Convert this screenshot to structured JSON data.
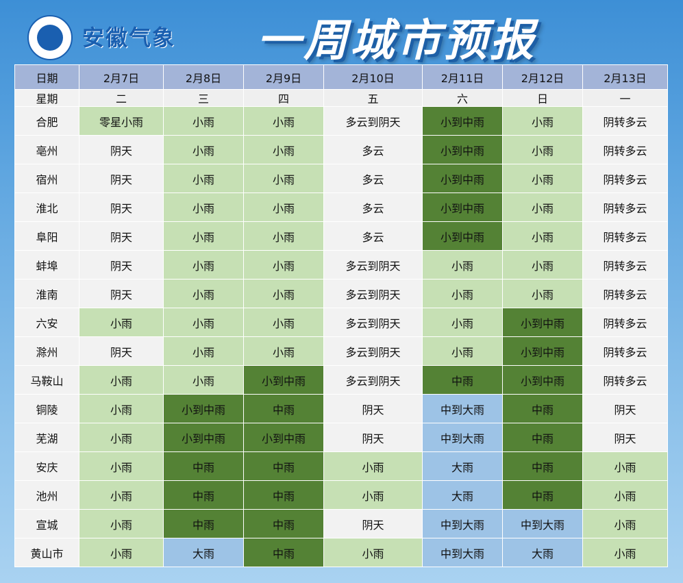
{
  "header": {
    "logo_label": "安徽气象",
    "title": "一周城市预报"
  },
  "colors": {
    "gray": "#f2f2f2",
    "light_green": "#c6e0b4",
    "dark_green": "#548235",
    "blue": "#9dc3e6",
    "date_header": "#a3b4d8"
  },
  "table": {
    "date_label": "日期",
    "week_label": "星期",
    "dates": [
      "2月7日",
      "2月8日",
      "2月9日",
      "2月10日",
      "2月11日",
      "2月12日",
      "2月13日"
    ],
    "weekdays": [
      "二",
      "三",
      "四",
      "五",
      "六",
      "日",
      "一"
    ],
    "rows": [
      {
        "city": "合肥",
        "cells": [
          "零星小雨",
          "小雨",
          "小雨",
          "多云到阴天",
          "小到中雨",
          "小雨",
          "阴转多云"
        ]
      },
      {
        "city": "亳州",
        "cells": [
          "阴天",
          "小雨",
          "小雨",
          "多云",
          "小到中雨",
          "小雨",
          "阴转多云"
        ]
      },
      {
        "city": "宿州",
        "cells": [
          "阴天",
          "小雨",
          "小雨",
          "多云",
          "小到中雨",
          "小雨",
          "阴转多云"
        ]
      },
      {
        "city": "淮北",
        "cells": [
          "阴天",
          "小雨",
          "小雨",
          "多云",
          "小到中雨",
          "小雨",
          "阴转多云"
        ]
      },
      {
        "city": "阜阳",
        "cells": [
          "阴天",
          "小雨",
          "小雨",
          "多云",
          "小到中雨",
          "小雨",
          "阴转多云"
        ]
      },
      {
        "city": "蚌埠",
        "cells": [
          "阴天",
          "小雨",
          "小雨",
          "多云到阴天",
          "小雨",
          "小雨",
          "阴转多云"
        ]
      },
      {
        "city": "淮南",
        "cells": [
          "阴天",
          "小雨",
          "小雨",
          "多云到阴天",
          "小雨",
          "小雨",
          "阴转多云"
        ]
      },
      {
        "city": "六安",
        "cells": [
          "小雨",
          "小雨",
          "小雨",
          "多云到阴天",
          "小雨",
          "小到中雨",
          "阴转多云"
        ]
      },
      {
        "city": "滁州",
        "cells": [
          "阴天",
          "小雨",
          "小雨",
          "多云到阴天",
          "小雨",
          "小到中雨",
          "阴转多云"
        ]
      },
      {
        "city": "马鞍山",
        "cells": [
          "小雨",
          "小雨",
          "小到中雨",
          "多云到阴天",
          "中雨",
          "小到中雨",
          "阴转多云"
        ]
      },
      {
        "city": "铜陵",
        "cells": [
          "小雨",
          "小到中雨",
          "中雨",
          "阴天",
          "中到大雨",
          "中雨",
          "阴天"
        ]
      },
      {
        "city": "芜湖",
        "cells": [
          "小雨",
          "小到中雨",
          "小到中雨",
          "阴天",
          "中到大雨",
          "中雨",
          "阴天"
        ]
      },
      {
        "city": "安庆",
        "cells": [
          "小雨",
          "中雨",
          "中雨",
          "小雨",
          "大雨",
          "中雨",
          "小雨"
        ]
      },
      {
        "city": "池州",
        "cells": [
          "小雨",
          "中雨",
          "中雨",
          "小雨",
          "大雨",
          "中雨",
          "小雨"
        ]
      },
      {
        "city": "宣城",
        "cells": [
          "小雨",
          "中雨",
          "中雨",
          "阴天",
          "中到大雨",
          "中到大雨",
          "小雨"
        ]
      },
      {
        "city": "黄山市",
        "cells": [
          "小雨",
          "大雨",
          "中雨",
          "小雨",
          "中到大雨",
          "大雨",
          "小雨"
        ]
      }
    ]
  }
}
